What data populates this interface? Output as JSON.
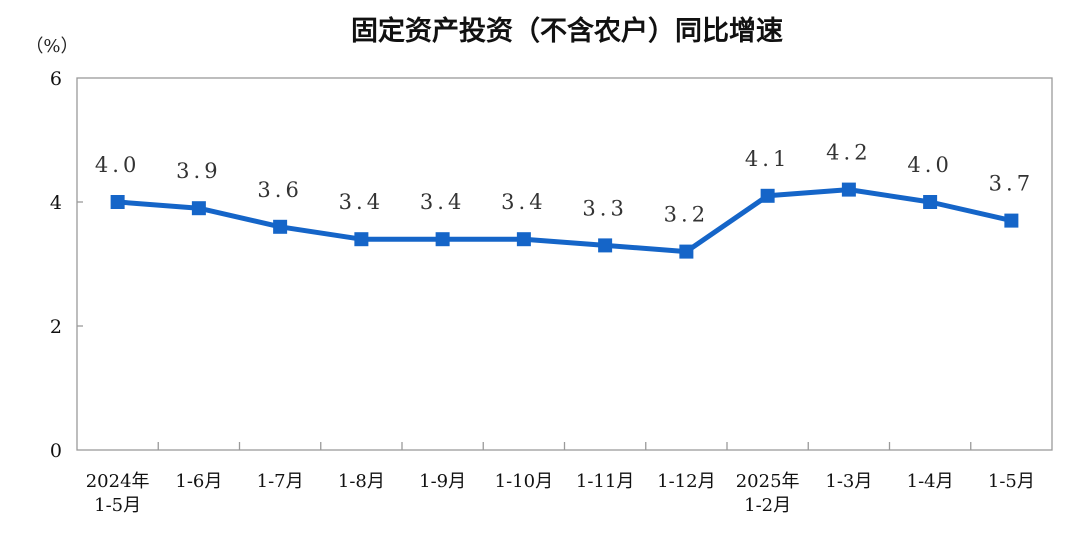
{
  "chart_data": {
    "type": "line",
    "title": "固定资产投资（不含农户）同比增速",
    "unit": "（%）",
    "categories": [
      [
        "2024年",
        "1-5月"
      ],
      [
        "1-6月"
      ],
      [
        "1-7月"
      ],
      [
        "1-8月"
      ],
      [
        "1-9月"
      ],
      [
        "1-10月"
      ],
      [
        "1-11月"
      ],
      [
        "1-12月"
      ],
      [
        "2025年",
        "1-2月"
      ],
      [
        "1-3月"
      ],
      [
        "1-4月"
      ],
      [
        "1-5月"
      ]
    ],
    "values": [
      4.0,
      3.9,
      3.6,
      3.4,
      3.4,
      3.4,
      3.3,
      3.2,
      4.1,
      4.2,
      4.0,
      3.7
    ],
    "data_labels": [
      "4.0",
      "3.9",
      "3.6",
      "3.4",
      "3.4",
      "3.4",
      "3.3",
      "3.2",
      "4.1",
      "4.2",
      "4.0",
      "3.7"
    ],
    "yticks": [
      0,
      2,
      4,
      6
    ],
    "ylim": [
      0,
      6
    ],
    "xlabel": "",
    "ylabel": "",
    "grid": false,
    "legend": "none",
    "colors": {
      "line": "#1565C8",
      "marker": "#1565C8",
      "axis": "#9a9a9a"
    }
  }
}
